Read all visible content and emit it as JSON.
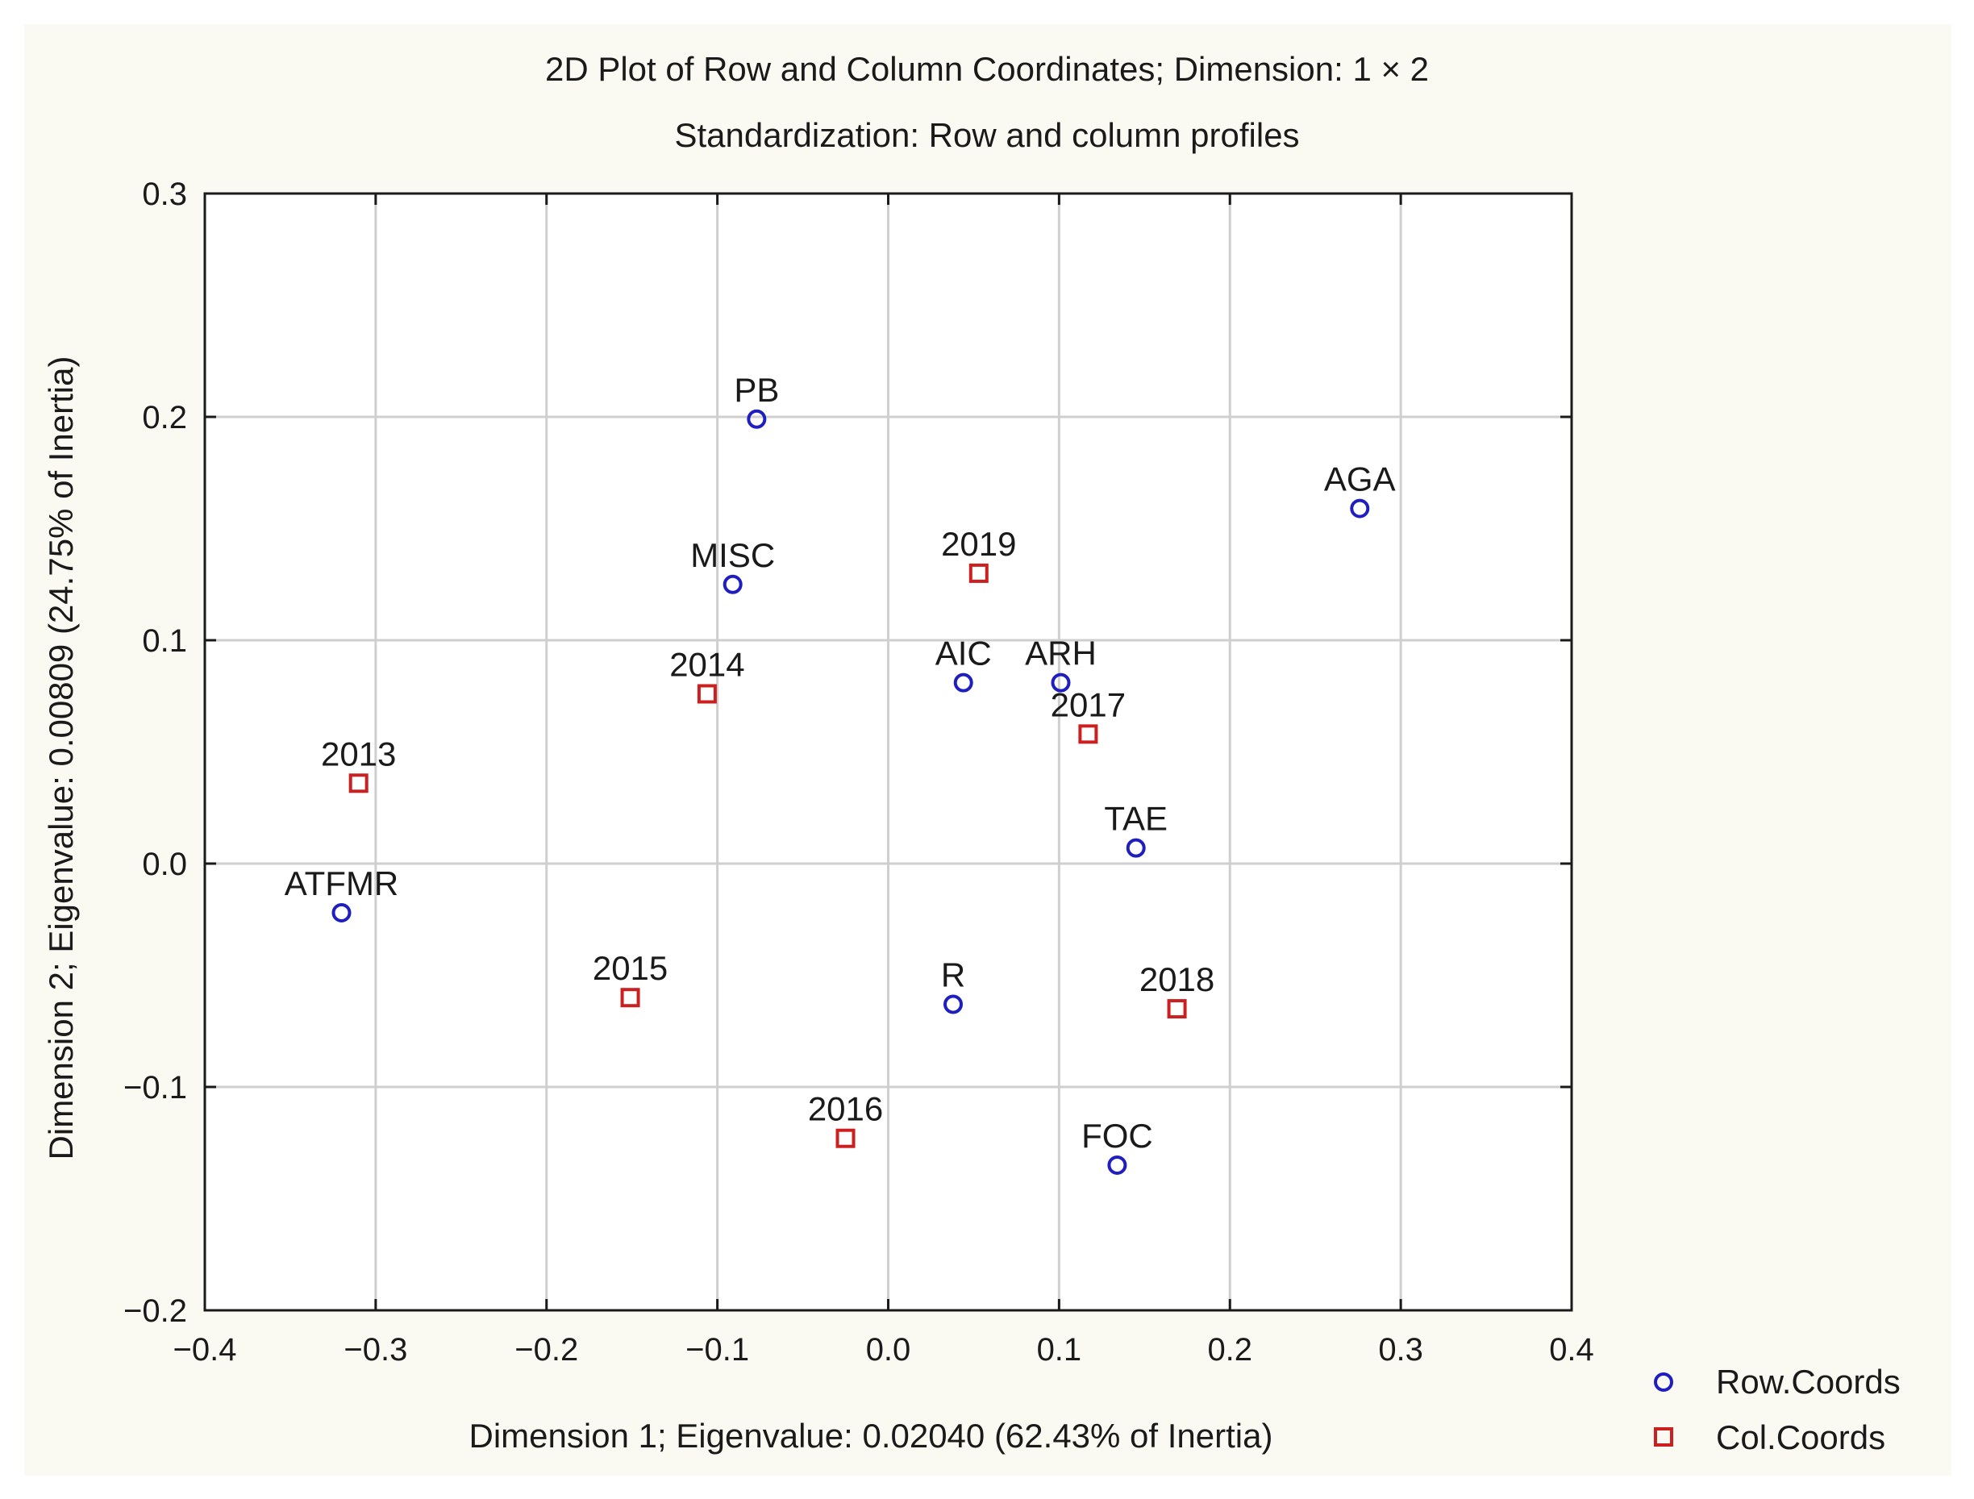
{
  "chart_data": {
    "type": "scatter",
    "title": "2D Plot of Row and Column Coordinates; Dimension:  1 × 2",
    "subtitle": "Standardization: Row and column profiles",
    "xlabel": "Dimension 1; Eigenvalue: 0.02040 (62.43% of Inertia)",
    "ylabel": "Dimension 2; Eigenvalue: 0.00809 (24.75% of Inertia)",
    "xlim": [
      -0.4,
      0.4
    ],
    "ylim": [
      -0.2,
      0.3
    ],
    "x_ticks": [
      "−0.4",
      "−0.3",
      "−0.2",
      "−0.1",
      "0.0",
      "0.1",
      "0.2",
      "0.3",
      "0.4"
    ],
    "y_ticks": [
      "0.3",
      "0.2",
      "0.1",
      "0.0",
      "−0.1",
      "−0.2"
    ],
    "grid": true,
    "legend_position": "bottom-right outside",
    "series": [
      {
        "name": "Row.Coords",
        "marker": "circle",
        "color": "#1f1fbf",
        "points": [
          {
            "label": "PB",
            "x": -0.077,
            "y": 0.199
          },
          {
            "label": "AGA",
            "x": 0.276,
            "y": 0.159
          },
          {
            "label": "MISC",
            "x": -0.091,
            "y": 0.125
          },
          {
            "label": "AIC",
            "x": 0.044,
            "y": 0.081
          },
          {
            "label": "ARH",
            "x": 0.101,
            "y": 0.081
          },
          {
            "label": "TAE",
            "x": 0.145,
            "y": 0.007
          },
          {
            "label": "ATFMR",
            "x": -0.32,
            "y": -0.022
          },
          {
            "label": "R",
            "x": 0.038,
            "y": -0.063
          },
          {
            "label": "FOC",
            "x": 0.134,
            "y": -0.135
          }
        ]
      },
      {
        "name": "Col.Coords",
        "marker": "square",
        "color": "#cc1f1f",
        "points": [
          {
            "label": "2019",
            "x": 0.053,
            "y": 0.13
          },
          {
            "label": "2014",
            "x": -0.106,
            "y": 0.076
          },
          {
            "label": "2017",
            "x": 0.117,
            "y": 0.058
          },
          {
            "label": "2013",
            "x": -0.31,
            "y": 0.036
          },
          {
            "label": "2015",
            "x": -0.151,
            "y": -0.06
          },
          {
            "label": "2018",
            "x": 0.169,
            "y": -0.065
          },
          {
            "label": "2016",
            "x": -0.025,
            "y": -0.123
          }
        ]
      }
    ]
  }
}
